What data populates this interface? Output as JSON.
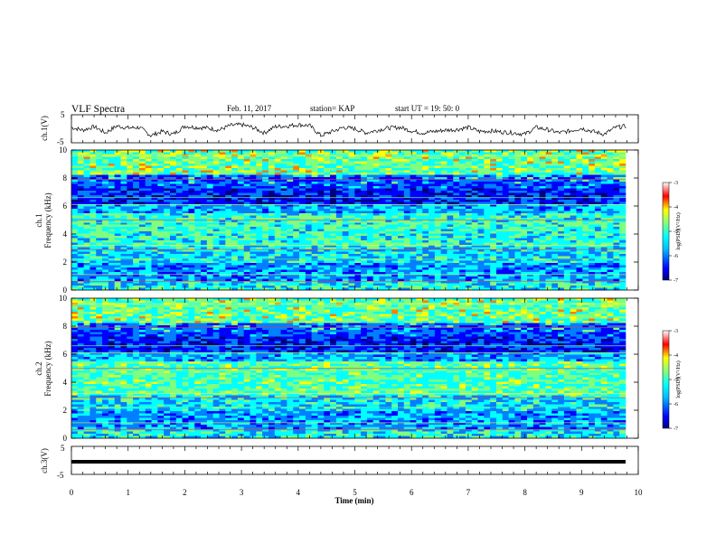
{
  "header": {
    "title": "VLF Spectra",
    "date": "Feb. 11, 2017",
    "station": "station= KAP",
    "start": "start  UT =   19: 50: 0"
  },
  "chart_data": [
    {
      "type": "line",
      "panel": "ch1-waveform",
      "ylabel": "ch.1(V)",
      "yticks": [
        "5",
        "-5"
      ],
      "ylim": [
        -5,
        5
      ],
      "xlim": [
        0,
        10
      ],
      "series": [
        {
          "x": [
            0,
            0.2,
            0.4,
            0.6,
            0.8,
            1.0,
            1.2,
            1.4,
            1.6,
            1.8,
            2.0,
            2.2,
            2.4,
            2.6,
            2.8,
            3.0,
            3.2,
            3.4,
            3.6,
            3.8,
            4.0,
            4.2,
            4.4,
            4.6,
            4.8,
            5.0,
            5.2,
            5.4,
            5.6,
            5.8,
            6.0,
            6.2,
            6.4,
            6.6,
            6.8,
            7.0,
            7.2,
            7.4,
            7.6,
            7.8,
            8.0,
            8.2,
            8.4,
            8.6,
            8.8,
            9.0,
            9.2,
            9.4,
            9.6,
            9.8
          ],
          "values": [
            0.5,
            -0.5,
            0.8,
            -1.5,
            1.0,
            0.3,
            0.5,
            -2.5,
            -1.0,
            -2.0,
            1.0,
            0.5,
            0.3,
            -0.5,
            1.2,
            1.5,
            0.5,
            -1.5,
            0.8,
            1.0,
            1.5,
            1.2,
            -2.5,
            -1.0,
            0.5,
            0.0,
            -1.5,
            -0.5,
            0.3,
            0.5,
            -0.8,
            -1.5,
            -1.0,
            -0.5,
            -0.3,
            0.5,
            -1.0,
            -0.8,
            -1.2,
            -1.5,
            -2.0,
            0.5,
            -0.3,
            -1.5,
            -0.8,
            0.2,
            -1.0,
            -2.0,
            0.5,
            1.0
          ]
        }
      ]
    },
    {
      "type": "heatmap",
      "panel": "ch1-spectrogram",
      "ylabel": "ch.1\nFrequency (kHz)",
      "ylim": [
        0,
        10
      ],
      "xlim": [
        0,
        10
      ],
      "yticks": [
        "0",
        "2",
        "4",
        "6",
        "8",
        "10"
      ],
      "colorbar": {
        "label": "log(PSD)(V²/Hz)",
        "ticks": [
          "-3",
          "-4",
          "-5",
          "-6",
          "-7"
        ],
        "range": [
          -7,
          -3
        ]
      }
    },
    {
      "type": "heatmap",
      "panel": "ch2-spectrogram",
      "ylabel": "ch.2\nFrequency (kHz)",
      "ylim": [
        0,
        10
      ],
      "xlim": [
        0,
        10
      ],
      "yticks": [
        "0",
        "2",
        "4",
        "6",
        "8",
        "10"
      ],
      "colorbar": {
        "label": "log(PSD)(V²/Hz)",
        "ticks": [
          "-3",
          "-4",
          "-5",
          "-6",
          "-7"
        ],
        "range": [
          -7,
          -3
        ]
      }
    },
    {
      "type": "line",
      "panel": "ch3-waveform",
      "ylabel": "ch.3(V)",
      "yticks": [
        "5",
        "-5"
      ],
      "ylim": [
        -5,
        5
      ],
      "xlim": [
        0,
        10
      ],
      "series": [
        {
          "x": [
            0,
            9.8
          ],
          "values": [
            0,
            0
          ]
        }
      ]
    }
  ],
  "xaxis": {
    "label": "Time  (min)",
    "ticks": [
      "0",
      "1",
      "2",
      "3",
      "4",
      "5",
      "6",
      "7",
      "8",
      "9",
      "10"
    ]
  },
  "colors": {
    "colormap": [
      "#00007f",
      "#0000ff",
      "#007fff",
      "#00ffff",
      "#7fff7f",
      "#ffff00",
      "#ff7f00",
      "#ff0000",
      "#7f0000"
    ]
  }
}
